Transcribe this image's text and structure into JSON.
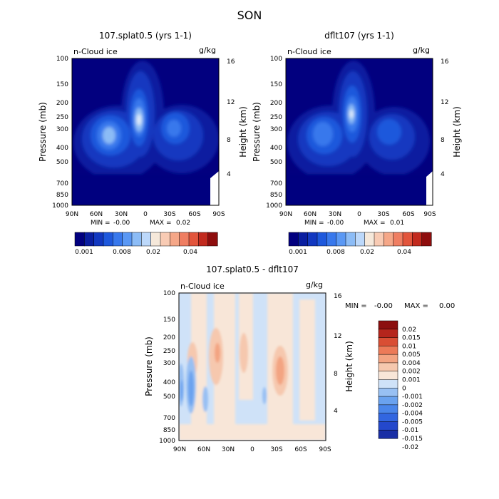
{
  "figure_title": "SON",
  "colors": {
    "main_scale": [
      "#02007f",
      "#0a1ea0",
      "#1238c0",
      "#1e58dc",
      "#3878ec",
      "#5a98f4",
      "#8cbcf6",
      "#bcd8fa",
      "#f5e8da",
      "#f8cbb4",
      "#f5a788",
      "#ef7e62",
      "#e2553c",
      "#c22a1e",
      "#8e0d0d"
    ],
    "diff_scale": [
      "#1a2fa5",
      "#2448cc",
      "#3266e0",
      "#4a86ea",
      "#6aa2ef",
      "#98c0f3",
      "#cfe2f8",
      "#f8e6d8",
      "#f6c8ae",
      "#f3a482",
      "#ec7a58",
      "#d94e34",
      "#b5251c",
      "#8c0f0f"
    ]
  },
  "chart_data": [
    {
      "type": "contour",
      "title": "107.splat0.5 (yrs 1-1)",
      "field_label": "n-Cloud ice",
      "units": "g/kg",
      "ylabel": "Pressure (mb)",
      "ylabel_right": "Height (km)",
      "x_ticks": [
        "90N",
        "60N",
        "30N",
        "0",
        "30S",
        "60S",
        "90S"
      ],
      "y_ticks": [
        "100",
        "150",
        "200",
        "250",
        "300",
        "400",
        "500",
        "700",
        "850",
        "1000"
      ],
      "height_ticks": [
        "16",
        "12",
        "8",
        "4"
      ],
      "min_label": "MIN =",
      "min_value": "-0.00",
      "max_label": "MAX =",
      "max_value": "0.02",
      "colorbar_labels": [
        "0.001",
        "0.008",
        "0.02",
        "0.04"
      ]
    },
    {
      "type": "contour",
      "title": "dflt107 (yrs 1-1)",
      "field_label": "n-Cloud ice",
      "units": "g/kg",
      "ylabel": "Pressure (mb)",
      "ylabel_right": "Height (km)",
      "x_ticks": [
        "90N",
        "60N",
        "30N",
        "0",
        "30S",
        "60S",
        "90S"
      ],
      "y_ticks": [
        "100",
        "150",
        "200",
        "250",
        "300",
        "400",
        "500",
        "700",
        "850",
        "1000"
      ],
      "height_ticks": [
        "16",
        "12",
        "8",
        "4"
      ],
      "min_label": "MIN =",
      "min_value": "-0.00",
      "max_label": "MAX =",
      "max_value": "0.01",
      "colorbar_labels": [
        "0.001",
        "0.008",
        "0.02",
        "0.04"
      ]
    },
    {
      "type": "contour",
      "title": "107.splat0.5 - dflt107",
      "field_label": "n-Cloud ice",
      "units": "g/kg",
      "ylabel": "Pressure (mb)",
      "ylabel_right": "Height (km)",
      "x_ticks": [
        "90N",
        "60N",
        "30N",
        "0",
        "30S",
        "60S",
        "90S"
      ],
      "y_ticks": [
        "100",
        "150",
        "200",
        "250",
        "300",
        "400",
        "500",
        "700",
        "850",
        "1000"
      ],
      "height_ticks": [
        "16",
        "12",
        "8",
        "4"
      ],
      "min_label": "MIN =",
      "min_value": "-0.00",
      "max_label": "MAX =",
      "max_value": "0.00",
      "colorbar_labels": [
        "0.02",
        "0.015",
        "0.01",
        "0.005",
        "0.004",
        "0.002",
        "0.001",
        "0",
        "-0.001",
        "-0.002",
        "-0.004",
        "-0.005",
        "-0.01",
        "-0.015",
        "-0.02"
      ]
    }
  ]
}
